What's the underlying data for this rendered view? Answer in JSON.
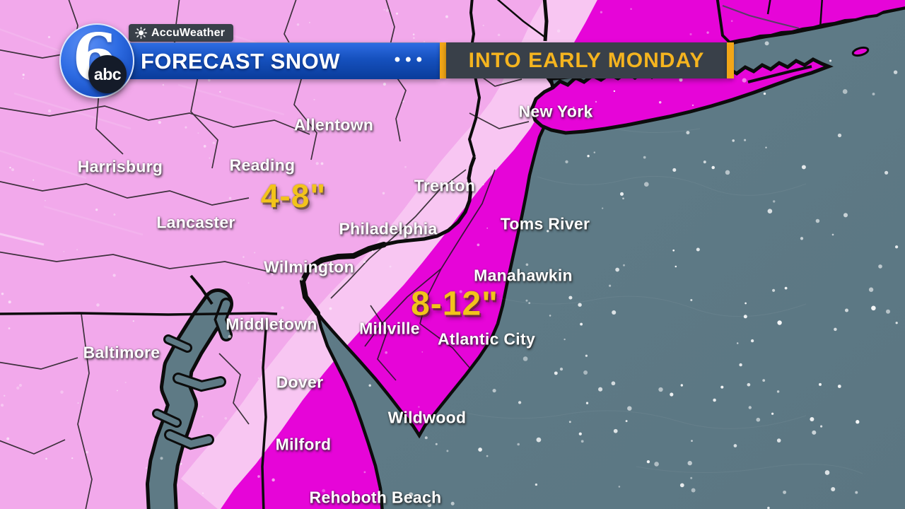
{
  "header": {
    "logo": {
      "channel": "6",
      "network": "abc"
    },
    "accuweather_label": "AccuWeather",
    "title": "FORECAST SNOW",
    "ellipsis": "•••",
    "subtitle": "INTO EARLY MONDAY"
  },
  "theme": {
    "pink_4_8": "#F2A9EB",
    "pink_pale_band": "#F8C9F3",
    "magenta_8_12": "#E605D8",
    "ocean": "#5E7A85",
    "banner_blue_top": "#2E6CE3",
    "banner_blue_bottom": "#0A3C9B",
    "banner_dark": "#394049",
    "gold_accent": "#F2A617",
    "gold_text": "#F5B41F",
    "label_yellow": "#F2C31B"
  },
  "map": {
    "snow_bands": [
      {
        "range": "4-8\"",
        "color_key": "pink_4_8"
      },
      {
        "range": "8-12\"",
        "color_key": "magenta_8_12"
      }
    ],
    "amounts": [
      {
        "text": "4-8\""
      },
      {
        "text": "8-12\""
      }
    ],
    "cities": [
      {
        "name": "Allentown"
      },
      {
        "name": "New York"
      },
      {
        "name": "Harrisburg"
      },
      {
        "name": "Reading"
      },
      {
        "name": "Trenton"
      },
      {
        "name": "Lancaster"
      },
      {
        "name": "Philadelphia"
      },
      {
        "name": "Toms River"
      },
      {
        "name": "Wilmington"
      },
      {
        "name": "Manahawkin"
      },
      {
        "name": "Middletown"
      },
      {
        "name": "Millville"
      },
      {
        "name": "Atlantic City"
      },
      {
        "name": "Baltimore"
      },
      {
        "name": "Dover"
      },
      {
        "name": "Wildwood"
      },
      {
        "name": "Milford"
      },
      {
        "name": "Rehoboth Beach"
      }
    ]
  }
}
